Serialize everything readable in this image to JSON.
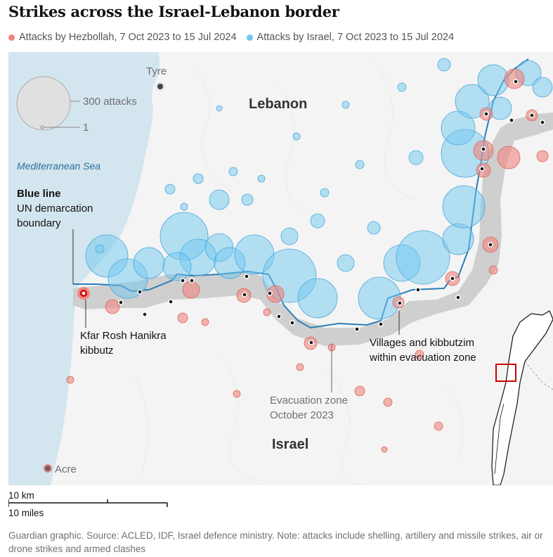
{
  "title": "Strikes across the Israel-Lebanon border",
  "legend": {
    "hezbollah_label": "Attacks by Hezbollah, 7 Oct 2023 to 15 Jul 2024",
    "israel_label": "Attacks by Israel, 7 Oct 2023 to 15 Jul 2024",
    "hezbollah_color": "#f0847c",
    "israel_color": "#70c7ef"
  },
  "size_key": {
    "large_label": "300 attacks",
    "small_label": "1"
  },
  "labels": {
    "lebanon": "Lebanon",
    "israel": "Israel",
    "sea": "Mediterranean Sea",
    "tyre": "Tyre",
    "acre": "Acre",
    "blue_line_title": "Blue line",
    "blue_line_desc1": "UN demarcation",
    "blue_line_desc2": "boundary",
    "kfar_1": "Kfar Rosh Hanikra",
    "kfar_2": "kibbutz",
    "evac_1": "Evacuation zone",
    "evac_2": "October 2023",
    "villages_1": "Villages and kibbutzim",
    "villages_2": "within evacuation zone"
  },
  "scale": {
    "km": "10 km",
    "miles": "10 miles"
  },
  "footnote": "Guardian graphic. Source: ACLED, IDF, Israel defence ministry. Note: attacks include shelling, artillery and missile strikes, air or drone strikes and armed clashes",
  "colors": {
    "sea": "#d3e5ee",
    "land": "#f4f4f4",
    "blue_line": "#2a7fb8",
    "zone": "#c8c8c8",
    "inset_box": "#c70000"
  }
}
